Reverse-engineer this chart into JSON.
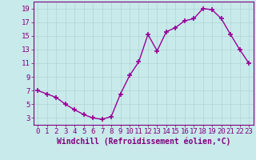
{
  "x": [
    0,
    1,
    2,
    3,
    4,
    5,
    6,
    7,
    8,
    9,
    10,
    11,
    12,
    13,
    14,
    15,
    16,
    17,
    18,
    19,
    20,
    21,
    22,
    23
  ],
  "y": [
    7.0,
    6.5,
    6.0,
    5.0,
    4.2,
    3.5,
    3.0,
    2.8,
    3.2,
    6.5,
    9.2,
    11.2,
    15.2,
    12.8,
    15.6,
    16.2,
    17.2,
    17.5,
    19.0,
    18.8,
    17.5,
    15.2,
    13.0,
    11.0
  ],
  "line_color": "#990099",
  "marker": "+",
  "marker_size": 4,
  "bg_color": "#c8eaea",
  "grid_color": "#b0d4d4",
  "xlabel": "Windchill (Refroidissement éolien,°C)",
  "ylabel": "",
  "title": "",
  "xlim": [
    -0.5,
    23.5
  ],
  "ylim": [
    2.0,
    20.0
  ],
  "yticks": [
    3,
    5,
    7,
    9,
    11,
    13,
    15,
    17,
    19
  ],
  "xticks": [
    0,
    1,
    2,
    3,
    4,
    5,
    6,
    7,
    8,
    9,
    10,
    11,
    12,
    13,
    14,
    15,
    16,
    17,
    18,
    19,
    20,
    21,
    22,
    23
  ],
  "spine_color": "#800080",
  "tick_color": "#800080",
  "label_color": "#800080",
  "font_size": 6.5,
  "xlabel_fontsize": 7.0,
  "linewidth": 1.0,
  "marker_color": "#990099"
}
